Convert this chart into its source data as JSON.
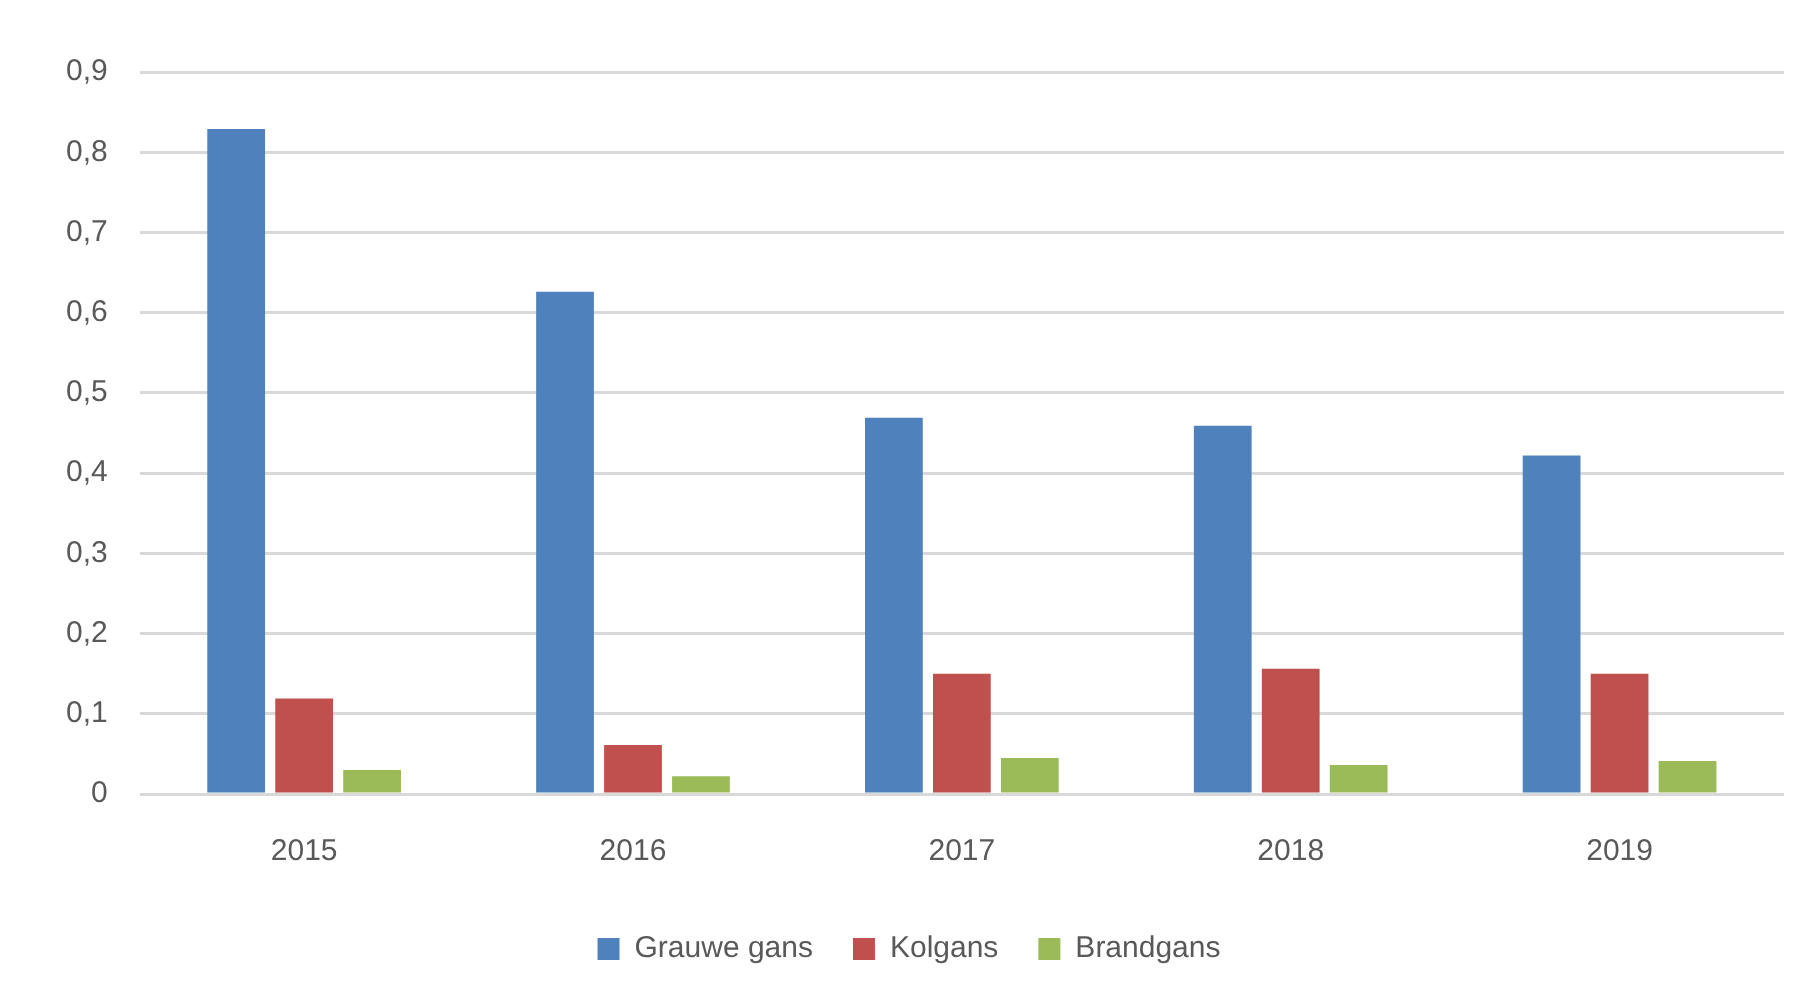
{
  "chart_data": {
    "type": "bar",
    "categories": [
      "2015",
      "2016",
      "2017",
      "2018",
      "2019"
    ],
    "series": [
      {
        "name": "Grauwe gans",
        "color": "#4f81bd",
        "values": [
          0.829,
          0.626,
          0.469,
          0.459,
          0.422
        ]
      },
      {
        "name": "Kolgans",
        "color": "#c0504d",
        "values": [
          0.119,
          0.061,
          0.15,
          0.156,
          0.15
        ]
      },
      {
        "name": "Brandgans",
        "color": "#9bbb59",
        "values": [
          0.03,
          0.022,
          0.045,
          0.036,
          0.041
        ]
      }
    ],
    "ylim": [
      0,
      0.9
    ],
    "yticks": [
      {
        "value": 0,
        "label": "0"
      },
      {
        "value": 0.1,
        "label": "0,1"
      },
      {
        "value": 0.2,
        "label": "0,2"
      },
      {
        "value": 0.3,
        "label": "0,3"
      },
      {
        "value": 0.4,
        "label": "0,4"
      },
      {
        "value": 0.5,
        "label": "0,5"
      },
      {
        "value": 0.6,
        "label": "0,6"
      },
      {
        "value": 0.7,
        "label": "0,7"
      },
      {
        "value": 0.8,
        "label": "0,8"
      },
      {
        "value": 0.9,
        "label": "0,9"
      }
    ],
    "grid": "y",
    "legend": "bottom"
  }
}
